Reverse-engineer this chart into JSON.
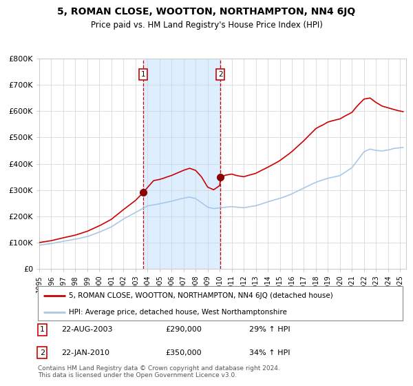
{
  "title": "5, ROMAN CLOSE, WOOTTON, NORTHAMPTON, NN4 6JQ",
  "subtitle": "Price paid vs. HM Land Registry's House Price Index (HPI)",
  "ylim": [
    0,
    800000
  ],
  "yticks": [
    0,
    100000,
    200000,
    300000,
    400000,
    500000,
    600000,
    700000,
    800000
  ],
  "ytick_labels": [
    "£0",
    "£100K",
    "£200K",
    "£300K",
    "£400K",
    "£500K",
    "£600K",
    "£700K",
    "£800K"
  ],
  "xlim_start": 1995.0,
  "xlim_end": 2025.5,
  "hpi_color": "#a8c8e8",
  "price_color": "#cc0000",
  "purchase1_x": 2003.644,
  "purchase1_y": 290000,
  "purchase1_label": "1",
  "purchase2_x": 2010.055,
  "purchase2_y": 350000,
  "purchase2_label": "2",
  "shade_color": "#ddeeff",
  "dashed_color": "#cc0000",
  "legend_line1": "5, ROMAN CLOSE, WOOTTON, NORTHAMPTON, NN4 6JQ (detached house)",
  "legend_line2": "HPI: Average price, detached house, West Northamptonshire",
  "table_row1": [
    "1",
    "22-AUG-2003",
    "£290,000",
    "29% ↑ HPI"
  ],
  "table_row2": [
    "2",
    "22-JAN-2010",
    "£350,000",
    "34% ↑ HPI"
  ],
  "footnote": "Contains HM Land Registry data © Crown copyright and database right 2024.\nThis data is licensed under the Open Government Licence v3.0."
}
